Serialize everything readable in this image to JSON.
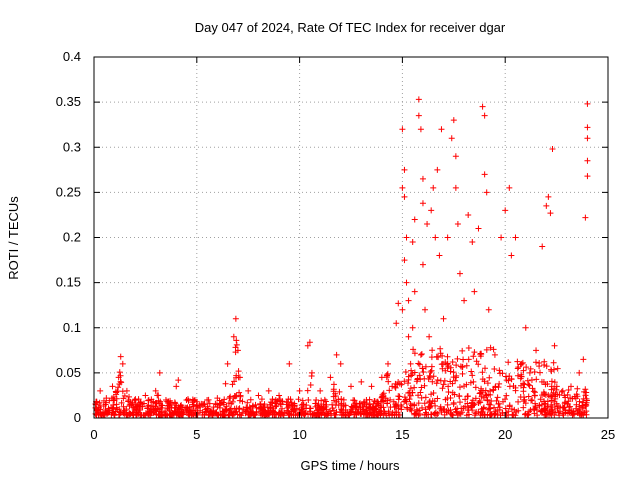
{
  "chart_data": {
    "type": "scatter",
    "title": "Day 047 of 2024, Rate Of TEC Index for receiver dgar",
    "xlabel": "GPS time / hours",
    "ylabel": "ROTI / TECUs",
    "xlim": [
      0,
      25
    ],
    "ylim": [
      0,
      0.4
    ],
    "x_ticks": [
      0,
      5,
      10,
      15,
      20,
      25
    ],
    "x_tick_labels": [
      "0",
      "5",
      "10",
      "15",
      "20",
      "25"
    ],
    "y_ticks": [
      0,
      0.05,
      0.1,
      0.15,
      0.2,
      0.25,
      0.3,
      0.35,
      0.4
    ],
    "y_tick_labels": [
      "0",
      "0.05",
      "0.1",
      "0.15",
      "0.2",
      "0.25",
      "0.3",
      "0.35",
      "0.4"
    ],
    "grid": true,
    "marker": "+",
    "color": "#ff0000",
    "series": [
      {
        "name": "ROTI",
        "points": [
          [
            0.1,
            0.018
          ],
          [
            0.3,
            0.03
          ],
          [
            0.6,
            0.022
          ],
          [
            0.9,
            0.035
          ],
          [
            1.2,
            0.045
          ],
          [
            1.3,
            0.068
          ],
          [
            1.4,
            0.06
          ],
          [
            1.6,
            0.03
          ],
          [
            2.0,
            0.02
          ],
          [
            2.5,
            0.025
          ],
          [
            3.0,
            0.03
          ],
          [
            3.2,
            0.05
          ],
          [
            3.5,
            0.02
          ],
          [
            4.0,
            0.035
          ],
          [
            4.1,
            0.042
          ],
          [
            4.5,
            0.02
          ],
          [
            5.0,
            0.018
          ],
          [
            5.5,
            0.02
          ],
          [
            6.0,
            0.022
          ],
          [
            6.4,
            0.038
          ],
          [
            6.5,
            0.06
          ],
          [
            6.8,
            0.09
          ],
          [
            6.9,
            0.11
          ],
          [
            7.0,
            0.075
          ],
          [
            7.1,
            0.045
          ],
          [
            7.5,
            0.03
          ],
          [
            8.0,
            0.025
          ],
          [
            8.5,
            0.03
          ],
          [
            9.0,
            0.025
          ],
          [
            9.5,
            0.06
          ],
          [
            10.0,
            0.03
          ],
          [
            10.4,
            0.08
          ],
          [
            10.5,
            0.084
          ],
          [
            10.6,
            0.05
          ],
          [
            11.0,
            0.03
          ],
          [
            11.5,
            0.045
          ],
          [
            11.8,
            0.07
          ],
          [
            12.0,
            0.06
          ],
          [
            12.5,
            0.035
          ],
          [
            13.0,
            0.04
          ],
          [
            13.5,
            0.035
          ],
          [
            14.0,
            0.045
          ],
          [
            14.3,
            0.06
          ],
          [
            14.5,
            0.035
          ],
          [
            14.7,
            0.105
          ],
          [
            14.8,
            0.127
          ],
          [
            15.0,
            0.12
          ],
          [
            15.0,
            0.255
          ],
          [
            15.0,
            0.32
          ],
          [
            15.1,
            0.275
          ],
          [
            15.1,
            0.245
          ],
          [
            15.1,
            0.175
          ],
          [
            15.2,
            0.15
          ],
          [
            15.2,
            0.2
          ],
          [
            15.3,
            0.13
          ],
          [
            15.3,
            0.09
          ],
          [
            15.4,
            0.06
          ],
          [
            15.5,
            0.1
          ],
          [
            15.5,
            0.195
          ],
          [
            15.6,
            0.22
          ],
          [
            15.6,
            0.14
          ],
          [
            15.8,
            0.335
          ],
          [
            15.8,
            0.353
          ],
          [
            15.9,
            0.32
          ],
          [
            15.9,
            0.07
          ],
          [
            16.0,
            0.265
          ],
          [
            16.0,
            0.238
          ],
          [
            16.0,
            0.17
          ],
          [
            16.1,
            0.12
          ],
          [
            16.2,
            0.215
          ],
          [
            16.3,
            0.09
          ],
          [
            16.4,
            0.23
          ],
          [
            16.5,
            0.255
          ],
          [
            16.6,
            0.2
          ],
          [
            16.7,
            0.275
          ],
          [
            16.8,
            0.18
          ],
          [
            16.9,
            0.32
          ],
          [
            17.0,
            0.11
          ],
          [
            17.2,
            0.2
          ],
          [
            17.4,
            0.31
          ],
          [
            17.5,
            0.33
          ],
          [
            17.6,
            0.29
          ],
          [
            17.6,
            0.255
          ],
          [
            17.7,
            0.215
          ],
          [
            17.8,
            0.16
          ],
          [
            18.0,
            0.13
          ],
          [
            18.2,
            0.225
          ],
          [
            18.4,
            0.195
          ],
          [
            18.5,
            0.14
          ],
          [
            18.7,
            0.21
          ],
          [
            18.9,
            0.345
          ],
          [
            19.0,
            0.335
          ],
          [
            19.0,
            0.27
          ],
          [
            19.1,
            0.25
          ],
          [
            19.2,
            0.12
          ],
          [
            19.5,
            0.07
          ],
          [
            19.8,
            0.2
          ],
          [
            20.0,
            0.23
          ],
          [
            20.2,
            0.255
          ],
          [
            20.3,
            0.18
          ],
          [
            20.5,
            0.2
          ],
          [
            20.8,
            0.06
          ],
          [
            21.0,
            0.1
          ],
          [
            21.2,
            0.05
          ],
          [
            21.5,
            0.075
          ],
          [
            21.8,
            0.19
          ],
          [
            22.0,
            0.235
          ],
          [
            22.1,
            0.245
          ],
          [
            22.2,
            0.227
          ],
          [
            22.3,
            0.298
          ],
          [
            22.4,
            0.08
          ],
          [
            22.8,
            0.03
          ],
          [
            23.2,
            0.035
          ],
          [
            23.6,
            0.05
          ],
          [
            23.8,
            0.065
          ],
          [
            23.9,
            0.222
          ],
          [
            24.0,
            0.268
          ],
          [
            24.0,
            0.31
          ],
          [
            24.0,
            0.285
          ],
          [
            24.0,
            0.322
          ],
          [
            24.0,
            0.348
          ]
        ]
      }
    ]
  }
}
